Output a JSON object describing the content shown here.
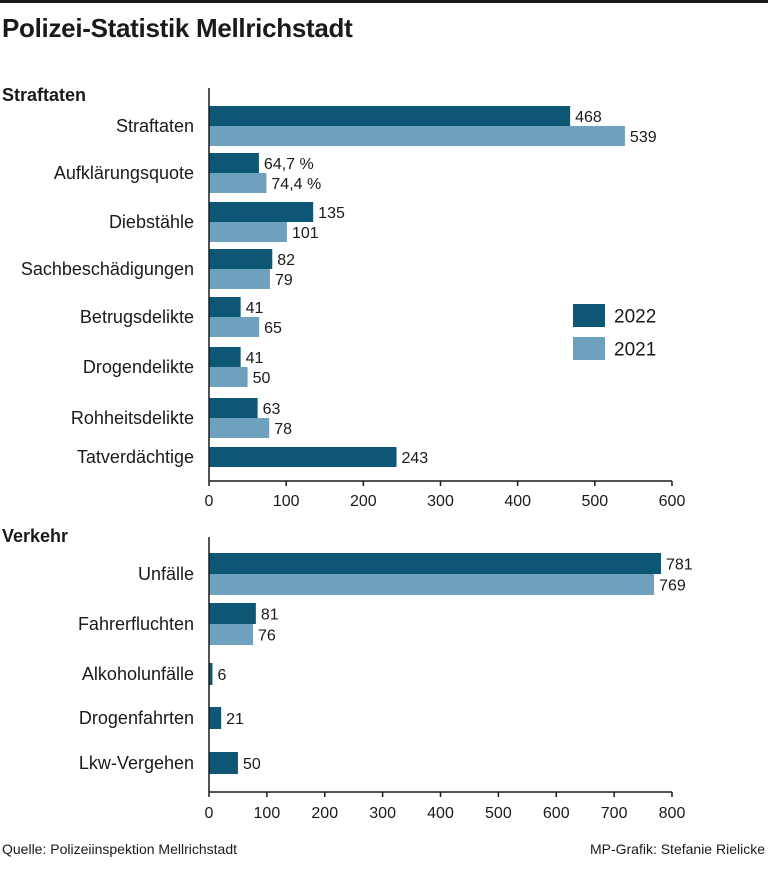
{
  "title": "Polizei-Statistik Mellrichstadt",
  "source": "Quelle: Polizeiinspektion Mellrichstadt",
  "credit": "MP-Grafik: Stefanie Rielicke",
  "colors": {
    "2022": "#0d5775",
    "2021": "#6ea1bd"
  },
  "chart_data": [
    {
      "type": "bar",
      "orientation": "horizontal",
      "title": "Straftaten",
      "legend": {
        "position": "right",
        "entries": [
          "2022",
          "2021"
        ]
      },
      "xlim": [
        0,
        600
      ],
      "ticks": [
        0,
        100,
        200,
        300,
        400,
        500,
        600
      ],
      "categories": [
        "Straftaten",
        "Aufklärungsquote",
        "Diebstähle",
        "Sachbeschädigungen",
        "Betrugsdelikte",
        "Drogendelikte",
        "Rohheitsdelikte",
        "Tatverdächtige"
      ],
      "series": [
        {
          "name": "2022",
          "values": [
            468,
            64.7,
            135,
            82,
            41,
            41,
            63,
            243
          ],
          "labels": [
            "468",
            "64,7 %",
            "135",
            "82",
            "41",
            "41",
            "63",
            "243"
          ]
        },
        {
          "name": "2021",
          "values": [
            539,
            74.4,
            101,
            79,
            65,
            50,
            78,
            null
          ],
          "labels": [
            "539",
            "74,4 %",
            "101",
            "79",
            "65",
            "50",
            "78",
            null
          ]
        }
      ]
    },
    {
      "type": "bar",
      "orientation": "horizontal",
      "title": "Verkehr",
      "xlim": [
        0,
        800
      ],
      "ticks": [
        0,
        100,
        200,
        300,
        400,
        500,
        600,
        700,
        800
      ],
      "categories": [
        "Unfälle",
        "Fahrerfluchten",
        "Alkoholunfälle",
        "Drogenfahrten",
        "Lkw-Vergehen"
      ],
      "series": [
        {
          "name": "2022",
          "values": [
            781,
            81,
            6,
            21,
            50
          ],
          "labels": [
            "781",
            "81",
            "6",
            "21",
            "50"
          ]
        },
        {
          "name": "2021",
          "values": [
            769,
            76,
            null,
            null,
            null
          ],
          "labels": [
            "769",
            "76",
            null,
            null,
            null
          ]
        }
      ]
    }
  ]
}
